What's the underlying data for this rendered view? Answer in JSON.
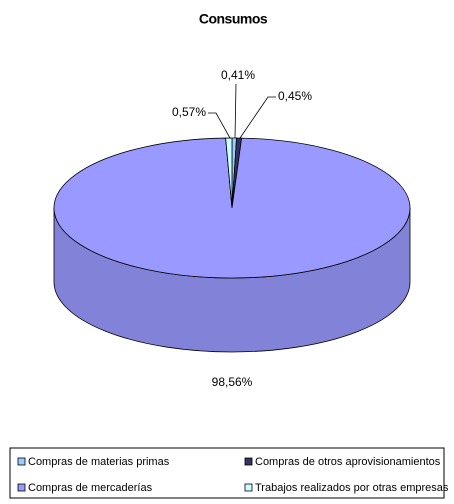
{
  "chart_data": {
    "type": "pie",
    "title": "Consumos",
    "categories": [
      "Compras de materias primas",
      "Compras de otros aprovisionamientos",
      "Compras de mercaderías",
      "Trabajos realizados por otras empresas"
    ],
    "values": [
      0.41,
      0.45,
      98.56,
      0.57
    ],
    "value_labels": [
      "0,41%",
      "0,45%",
      "98,56%",
      "0,57%"
    ],
    "colors": [
      "#99ccff",
      "#333366",
      "#9999ff",
      "#ccffff"
    ],
    "legend": "bottom"
  }
}
